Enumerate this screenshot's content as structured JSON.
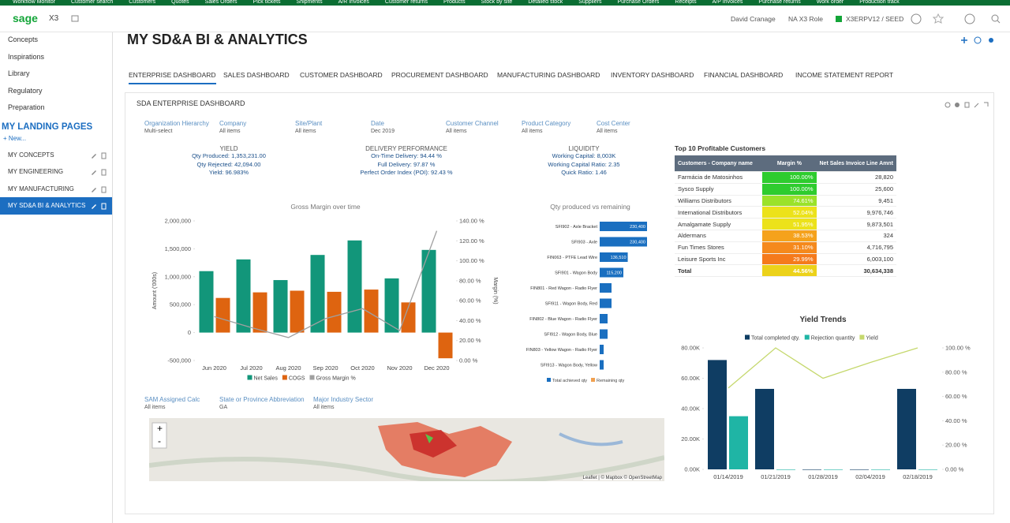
{
  "topnav": [
    "Workflow Monitor",
    "Customer search",
    "Customers",
    "Quotes",
    "Sales Orders",
    "Pick tickets",
    "Shipments",
    "A/R Invoices",
    "Customer returns",
    "Products",
    "Stock by site",
    "Detailed stock",
    "Suppliers",
    "Purchase Orders",
    "Receipts",
    "A/P Invoices",
    "Purchase returns",
    "Work order",
    "Production track"
  ],
  "header": {
    "logo": "sage",
    "product": "X3",
    "user": "David Cranage",
    "role": "NA X3 Role",
    "folder": "X3ERPV12 / SEED"
  },
  "sidebar": {
    "items": [
      "Concepts",
      "Inspirations",
      "Library",
      "Regulatory",
      "Preparation"
    ],
    "section": "MY LANDING PAGES",
    "new": "+ New...",
    "pages": [
      "MY CONCEPTS",
      "MY ENGINEERING",
      "MY MANUFACTURING",
      "MY SD&A BI & ANALYTICS"
    ]
  },
  "title": "MY SD&A BI & ANALYTICS",
  "tabs": [
    "ENTERPRISE DASHBOARD",
    "SALES DASHBOARD",
    "CUSTOMER DASHBOARD",
    "PROCUREMENT DASHBOARD",
    "MANUFACTURING DASHBOARD",
    "INVENTORY DASHBOARD",
    "FINANCIAL DASHBOARD",
    "INCOME STATEMENT REPORT"
  ],
  "dashboard_title": "SDA ENTERPRISE DASHBOARD",
  "filters": [
    {
      "label": "Organization Hierarchy",
      "value": "Multi-select"
    },
    {
      "label": "Company",
      "value": "All items"
    },
    {
      "label": "Site/Plant",
      "value": "All items"
    },
    {
      "label": "Date",
      "value": "Dec 2019"
    },
    {
      "label": "Customer Channel",
      "value": "All items"
    },
    {
      "label": "Product Category",
      "value": "All items"
    },
    {
      "label": "Cost Center",
      "value": "All items"
    }
  ],
  "filters2": [
    {
      "label": "SAM Assigned Calc",
      "value": "All items"
    },
    {
      "label": "State or Province Abbreviation",
      "value": "GA"
    },
    {
      "label": "Major Industry Sector",
      "value": "All items"
    }
  ],
  "kpis": [
    {
      "title": "YIELD",
      "lines": [
        "Qty Produced: 1,353,231.00",
        "Qty Rejected: 42,094.00",
        "Yield: 96.983%"
      ]
    },
    {
      "title": "DELIVERY PERFORMANCE",
      "lines": [
        "On-Time Delivery: 94.44 %",
        "Full Delivery: 97.87 %",
        "Perfect Order Index (POI): 92.43 %"
      ]
    },
    {
      "title": "LIQUIDITY",
      "lines": [
        "Working Capital: 8,003K",
        "Working Capital Ratio: 2.35",
        "Quick Ratio: 1.46"
      ]
    }
  ],
  "table": {
    "title": "Top 10 Profitable Customers",
    "headers": [
      "Customers - Company name",
      "Margin %",
      "Net Sales Invoice Line Amnt"
    ],
    "rows": [
      [
        "Farmácia de Matosinhos",
        "100.00%",
        "28,820"
      ],
      [
        "Sysco Supply",
        "100.00%",
        "25,600"
      ],
      [
        "Williams Distributors",
        "74.61%",
        "9,451"
      ],
      [
        "International Distributors",
        "52.04%",
        "9,976,746"
      ],
      [
        "Amalgamate Supply",
        "51.95%",
        "9,873,501"
      ],
      [
        "Aldermans",
        "38.53%",
        "324"
      ],
      [
        "Fun Times Stores",
        "31.10%",
        "4,716,795"
      ],
      [
        "Leisure Sports Inc",
        "29.99%",
        "6,003,100"
      ],
      [
        "Total",
        "44.56%",
        "30,634,338"
      ]
    ],
    "row_colors": [
      "#2ecc2e",
      "#2ecc2e",
      "#9be22a",
      "#ece21a",
      "#ece21a",
      "#f5a21c",
      "#f5891c",
      "#f57a1c",
      "#ecd21a"
    ]
  },
  "map": {
    "zoom_in": "+",
    "zoom_out": "-",
    "attribution": "Leaflet | © Mapbox © OpenStreetMap"
  },
  "chart_data": [
    {
      "type": "bar",
      "title": "Gross Margin over time",
      "y_label": "Amount ('000s)",
      "y2_label": "Margin (%)",
      "categories": [
        "Jun 2020",
        "Jul 2020",
        "Aug 2020",
        "Sep 2020",
        "Oct 2020",
        "Nov 2020",
        "Dec 2020"
      ],
      "series": [
        {
          "name": "Net Sales",
          "color": "#12967a",
          "values": [
            1100000,
            1310000,
            940000,
            1390000,
            1650000,
            970000,
            1480000
          ]
        },
        {
          "name": "COGS",
          "color": "#de6410",
          "values": [
            620000,
            720000,
            750000,
            730000,
            770000,
            540000,
            -460000
          ]
        },
        {
          "name": "Gross Margin %",
          "color": "#a0a0a0",
          "axis": "y2",
          "values": [
            44,
            33,
            23,
            42,
            52,
            30,
            130
          ]
        }
      ],
      "ylim": [
        -500000,
        2000000
      ],
      "yticks": [
        {
          "value": -500000,
          "label": "-500,000"
        },
        0,
        {
          "value": 500000,
          "label": "500,000"
        },
        {
          "value": 1000000,
          "label": "1,000,000"
        },
        {
          "value": 1500000,
          "label": "1,500,000"
        },
        {
          "value": 2000000,
          "label": "2,000,000"
        }
      ],
      "y2lim": [
        0,
        140
      ],
      "y2ticks": [
        {
          "value": 0,
          "label": "0.00 %"
        },
        {
          "value": 20,
          "label": "20.00 %"
        },
        {
          "value": 40,
          "label": "40.00 %"
        },
        {
          "value": 60,
          "label": "60.00 %"
        },
        {
          "value": 80,
          "label": "80.00 %"
        },
        {
          "value": 100,
          "label": "100.00 %"
        },
        {
          "value": 120,
          "label": "120.00 %"
        },
        {
          "value": 140,
          "label": "140.00 %"
        }
      ]
    },
    {
      "type": "barh",
      "title": "Qty produced vs remaining",
      "categories": [
        "SFI902 - Axle Bracket",
        "SFI903 - Axle",
        "FIN063 - PTFE Lead Wire",
        "SFI901 - Wagon Body",
        "FIN801 - Red Wagon - Radio Flyer",
        "SFI911 - Wagon Body, Red",
        "FIN802 - Blue Wagon - Radio Flyer",
        "SFI912 - Wagon Body, Blue",
        "FIN803 - Yellow Wagon - Radio Flyer",
        "SFI913 - Wagon Body, Yellow"
      ],
      "series": [
        {
          "name": "Total achieved qty",
          "color": "#1a6fc0",
          "values": [
            230400,
            230400,
            136510,
            115200,
            57600,
            57600,
            38400,
            38400,
            19200,
            19200
          ],
          "value_labels": [
            "230,400",
            "230,400",
            "136,510",
            "115,200",
            null,
            null,
            null,
            null,
            null,
            null
          ]
        },
        {
          "name": "Remaining qty",
          "color": "#f0a050",
          "values": [
            0,
            0,
            0,
            0,
            0,
            0,
            0,
            0,
            0,
            0
          ]
        }
      ]
    },
    {
      "type": "bar",
      "title": "Yield Trends",
      "categories": [
        "01/14/2019",
        "01/21/2019",
        "01/28/2019",
        "02/04/2019",
        "02/18/2019"
      ],
      "series": [
        {
          "name": "Total completed qty.",
          "color": "#0f3d63",
          "values": [
            72000,
            53000,
            0,
            0,
            53000
          ]
        },
        {
          "name": "Rejection quantity",
          "color": "#1fb5a5",
          "values": [
            35000,
            0,
            0,
            0,
            0
          ]
        },
        {
          "name": "Yield",
          "color": "#c5d86d",
          "axis": "y2",
          "values": [
            67,
            100,
            75,
            88,
            100
          ]
        }
      ],
      "ylim": [
        0,
        80000
      ],
      "yticks": [
        {
          "value": 0,
          "label": "0.00K"
        },
        {
          "value": 20000,
          "label": "20.00K"
        },
        {
          "value": 40000,
          "label": "40.00K"
        },
        {
          "value": 60000,
          "label": "60.00K"
        },
        {
          "value": 80000,
          "label": "80.00K"
        }
      ],
      "y2lim": [
        0,
        100
      ],
      "y2ticks": [
        {
          "value": 0,
          "label": "0.00 %"
        },
        {
          "value": 20,
          "label": "20.00 %"
        },
        {
          "value": 40,
          "label": "40.00 %"
        },
        {
          "value": 60,
          "label": "60.00 %"
        },
        {
          "value": 80,
          "label": "80.00 %"
        },
        {
          "value": 100,
          "label": "100.00 %"
        }
      ]
    }
  ]
}
